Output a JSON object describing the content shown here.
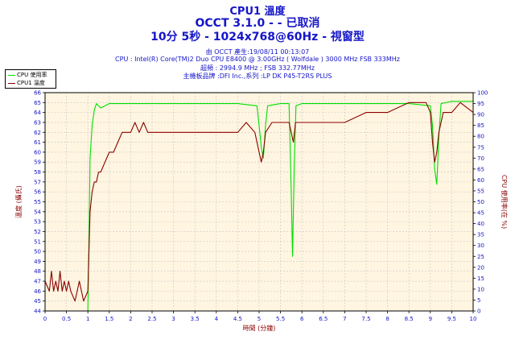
{
  "header": {
    "title": "CPU1 溫度",
    "subtitle": "OCCT 3.1.0 -  - 已取消",
    "test_info": "10分 5秒 - 1024x768@60Hz - 視窗型"
  },
  "info": {
    "generated": "由 OCCT 產生:19/08/11 00:13:07",
    "cpu": "CPU : Intel(R) Core(TM)2 Duo CPU E8400 @ 3.00GHz ( Wolfdale ) 3000 MHz FSB 333MHz",
    "clock": "超頻 : 2994.9 MHz ; FSB 332.77MHz",
    "motherboard": "主機板品牌 :DFI Inc.,系列 :LP DK P45-T2RS PLUS"
  },
  "legend": [
    {
      "name": "CPU 使用率",
      "color": "#00e000"
    },
    {
      "name": "CPU1 溫度",
      "color": "#8b0000"
    }
  ],
  "chart_data": {
    "type": "line",
    "xlabel": "時間 (分鐘)",
    "ylabel_left": "溫度 (攝氏)",
    "ylabel_right": "CPU 使用率(在 %)",
    "xlim": [
      0,
      10
    ],
    "x_ticks": [
      "0",
      "0.5",
      "1",
      "1.5",
      "2",
      "2.5",
      "3",
      "3.5",
      "4",
      "4.5",
      "5",
      "5.5",
      "6",
      "6.5",
      "7",
      "7.5",
      "8",
      "8.5",
      "9",
      "9.5",
      "10"
    ],
    "ylim_left": [
      44,
      66
    ],
    "y_left_ticks": [
      "44",
      "45",
      "46",
      "47",
      "48",
      "49",
      "50",
      "51",
      "52",
      "53",
      "54",
      "55",
      "56",
      "57",
      "58",
      "59",
      "60",
      "61",
      "62",
      "63",
      "64",
      "65",
      "66"
    ],
    "ylim_right": [
      0,
      100
    ],
    "y_right_ticks": [
      "0",
      "5",
      "10",
      "15",
      "20",
      "25",
      "30",
      "35",
      "40",
      "45",
      "50",
      "55",
      "60",
      "65",
      "70",
      "75",
      "80",
      "85",
      "90",
      "95",
      "100"
    ],
    "grid": true,
    "series": [
      {
        "name": "CPU 使用率",
        "axis": "right",
        "color": "#00e000",
        "points": [
          [
            0,
            0
          ],
          [
            1.0,
            0
          ],
          [
            1.02,
            25
          ],
          [
            1.05,
            70
          ],
          [
            1.1,
            85
          ],
          [
            1.15,
            92
          ],
          [
            1.2,
            95
          ],
          [
            1.3,
            93
          ],
          [
            1.5,
            95
          ],
          [
            2,
            95
          ],
          [
            2.5,
            95
          ],
          [
            3,
            95
          ],
          [
            3.5,
            95
          ],
          [
            4,
            95
          ],
          [
            4.5,
            95
          ],
          [
            4.95,
            94
          ],
          [
            5.0,
            85
          ],
          [
            5.05,
            75
          ],
          [
            5.1,
            70
          ],
          [
            5.15,
            85
          ],
          [
            5.2,
            94
          ],
          [
            5.5,
            95
          ],
          [
            5.7,
            95
          ],
          [
            5.75,
            55
          ],
          [
            5.78,
            25
          ],
          [
            5.82,
            65
          ],
          [
            5.86,
            94
          ],
          [
            6,
            95
          ],
          [
            7,
            95
          ],
          [
            8,
            95
          ],
          [
            8.5,
            95
          ],
          [
            9.0,
            94
          ],
          [
            9.05,
            85
          ],
          [
            9.1,
            65
          ],
          [
            9.15,
            58
          ],
          [
            9.2,
            80
          ],
          [
            9.25,
            95
          ],
          [
            9.5,
            96
          ],
          [
            10,
            96
          ]
        ]
      },
      {
        "name": "CPU1 溫度",
        "axis": "left",
        "color": "#8b0000",
        "points": [
          [
            0,
            47
          ],
          [
            0.1,
            46
          ],
          [
            0.15,
            48
          ],
          [
            0.2,
            46
          ],
          [
            0.25,
            47
          ],
          [
            0.3,
            46
          ],
          [
            0.35,
            48
          ],
          [
            0.4,
            46
          ],
          [
            0.45,
            47
          ],
          [
            0.5,
            46
          ],
          [
            0.55,
            47
          ],
          [
            0.6,
            46
          ],
          [
            0.7,
            45
          ],
          [
            0.8,
            47
          ],
          [
            0.9,
            45
          ],
          [
            1.0,
            46
          ],
          [
            1.05,
            54
          ],
          [
            1.1,
            56
          ],
          [
            1.15,
            57
          ],
          [
            1.2,
            57
          ],
          [
            1.25,
            58
          ],
          [
            1.3,
            58
          ],
          [
            1.4,
            59
          ],
          [
            1.5,
            60
          ],
          [
            1.6,
            60
          ],
          [
            1.7,
            61
          ],
          [
            1.8,
            62
          ],
          [
            1.9,
            62
          ],
          [
            2.0,
            62
          ],
          [
            2.1,
            63
          ],
          [
            2.2,
            62
          ],
          [
            2.3,
            63
          ],
          [
            2.4,
            62
          ],
          [
            2.5,
            62
          ],
          [
            2.7,
            62
          ],
          [
            3.0,
            62
          ],
          [
            3.5,
            62
          ],
          [
            4.0,
            62
          ],
          [
            4.5,
            62
          ],
          [
            4.7,
            63
          ],
          [
            4.9,
            62
          ],
          [
            5.0,
            60
          ],
          [
            5.05,
            59
          ],
          [
            5.1,
            60
          ],
          [
            5.15,
            62
          ],
          [
            5.3,
            63
          ],
          [
            5.5,
            63
          ],
          [
            5.7,
            63
          ],
          [
            5.75,
            62
          ],
          [
            5.8,
            61
          ],
          [
            5.85,
            63
          ],
          [
            6.0,
            63
          ],
          [
            6.5,
            63
          ],
          [
            7.0,
            63
          ],
          [
            7.5,
            64
          ],
          [
            8.0,
            64
          ],
          [
            8.5,
            65
          ],
          [
            8.9,
            65
          ],
          [
            9.0,
            64
          ],
          [
            9.05,
            61
          ],
          [
            9.1,
            59
          ],
          [
            9.15,
            60
          ],
          [
            9.2,
            62
          ],
          [
            9.3,
            64
          ],
          [
            9.5,
            64
          ],
          [
            9.7,
            65
          ],
          [
            10,
            64
          ]
        ]
      }
    ]
  }
}
